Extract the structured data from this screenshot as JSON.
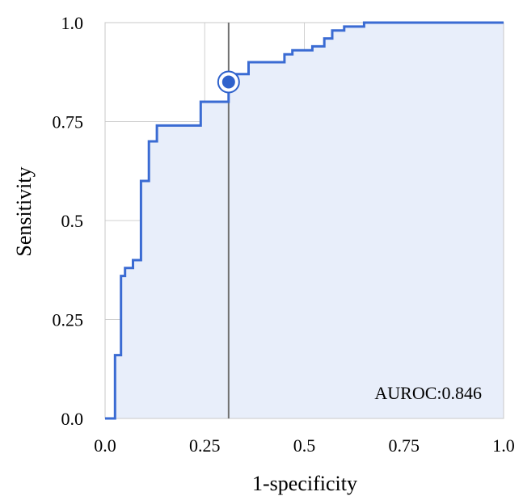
{
  "chart_data": {
    "type": "line",
    "title": "",
    "xlabel": "1-specificity",
    "ylabel": "Sensitivity",
    "xlim": [
      0,
      1
    ],
    "ylim": [
      0,
      1
    ],
    "x_ticks": [
      "0.0",
      "0.25",
      "0.5",
      "0.75",
      "1.0"
    ],
    "y_ticks": [
      "0.0",
      "0.25",
      "0.5",
      "0.75",
      "1.0"
    ],
    "grid": true,
    "area_fill": true,
    "annotation": "AUROC:0.846",
    "highlighted_point": {
      "x": 0.31,
      "y": 0.85
    },
    "reference_line_x": 0.31,
    "colors": {
      "line": "#3a6bd3",
      "fill": "#e8eefa",
      "grid": "#d0d0d0",
      "reference_line": "#707070",
      "marker": "#2f62cc"
    },
    "series": [
      {
        "x": [
          0.0,
          0.025,
          0.025,
          0.04,
          0.04,
          0.05,
          0.05,
          0.07,
          0.07,
          0.09,
          0.09,
          0.11,
          0.11,
          0.13,
          0.13,
          0.15,
          0.15,
          0.24,
          0.24,
          0.31,
          0.31,
          0.33,
          0.33,
          0.36,
          0.36,
          0.45,
          0.45,
          0.47,
          0.47,
          0.52,
          0.52,
          0.55,
          0.55,
          0.57,
          0.57,
          0.6,
          0.6,
          0.65,
          0.65,
          1.0
        ],
        "y": [
          0.0,
          0.0,
          0.16,
          0.16,
          0.36,
          0.36,
          0.38,
          0.38,
          0.4,
          0.4,
          0.6,
          0.6,
          0.7,
          0.7,
          0.74,
          0.74,
          0.74,
          0.74,
          0.8,
          0.8,
          0.85,
          0.85,
          0.87,
          0.87,
          0.9,
          0.9,
          0.92,
          0.92,
          0.93,
          0.93,
          0.94,
          0.94,
          0.96,
          0.96,
          0.98,
          0.98,
          0.99,
          0.99,
          1.0,
          1.0
        ]
      }
    ]
  }
}
